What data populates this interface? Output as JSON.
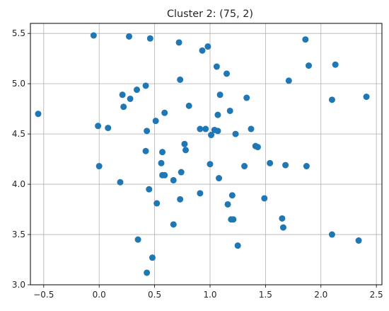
{
  "chart_data": {
    "type": "scatter",
    "title": "Cluster 2: (75, 2)",
    "xlabel": "",
    "ylabel": "",
    "xlim": [
      -0.62,
      2.55
    ],
    "ylim": [
      3.0,
      5.6
    ],
    "xticks": [
      -0.5,
      0.0,
      0.5,
      1.0,
      1.5,
      2.0,
      2.5
    ],
    "xtick_labels": [
      "−0.5",
      "0.0",
      "0.5",
      "1.0",
      "1.5",
      "2.0",
      "2.5"
    ],
    "yticks": [
      3.0,
      3.5,
      4.0,
      4.5,
      5.0,
      5.5
    ],
    "ytick_labels": [
      "3.0",
      "3.5",
      "4.0",
      "4.5",
      "5.0",
      "5.5"
    ],
    "grid": true,
    "marker_color": "#1f77b4",
    "points": [
      [
        -0.55,
        4.7
      ],
      [
        -0.05,
        5.48
      ],
      [
        -0.01,
        4.58
      ],
      [
        0.0,
        4.18
      ],
      [
        0.08,
        4.56
      ],
      [
        0.19,
        4.02
      ],
      [
        0.21,
        4.89
      ],
      [
        0.22,
        4.77
      ],
      [
        0.27,
        5.47
      ],
      [
        0.28,
        4.85
      ],
      [
        0.34,
        4.94
      ],
      [
        0.35,
        3.45
      ],
      [
        0.42,
        4.98
      ],
      [
        0.42,
        4.33
      ],
      [
        0.43,
        4.53
      ],
      [
        0.43,
        3.12
      ],
      [
        0.45,
        3.95
      ],
      [
        0.46,
        5.45
      ],
      [
        0.48,
        3.27
      ],
      [
        0.51,
        4.63
      ],
      [
        0.52,
        3.81
      ],
      [
        0.56,
        4.21
      ],
      [
        0.57,
        4.32
      ],
      [
        0.57,
        4.09
      ],
      [
        0.59,
        4.71
      ],
      [
        0.59,
        4.09
      ],
      [
        0.67,
        4.04
      ],
      [
        0.67,
        3.6
      ],
      [
        0.72,
        5.41
      ],
      [
        0.73,
        5.04
      ],
      [
        0.73,
        3.85
      ],
      [
        0.74,
        4.12
      ],
      [
        0.77,
        4.4
      ],
      [
        0.78,
        4.34
      ],
      [
        0.81,
        4.78
      ],
      [
        0.91,
        4.55
      ],
      [
        0.91,
        3.91
      ],
      [
        0.93,
        5.33
      ],
      [
        0.96,
        4.55
      ],
      [
        0.98,
        5.37
      ],
      [
        1.0,
        4.2
      ],
      [
        1.01,
        4.49
      ],
      [
        1.04,
        4.54
      ],
      [
        1.06,
        5.17
      ],
      [
        1.07,
        4.53
      ],
      [
        1.07,
        4.69
      ],
      [
        1.08,
        4.06
      ],
      [
        1.09,
        4.89
      ],
      [
        1.15,
        5.1
      ],
      [
        1.16,
        3.8
      ],
      [
        1.18,
        4.73
      ],
      [
        1.19,
        3.65
      ],
      [
        1.2,
        3.89
      ],
      [
        1.21,
        3.65
      ],
      [
        1.23,
        4.5
      ],
      [
        1.25,
        3.39
      ],
      [
        1.31,
        4.18
      ],
      [
        1.33,
        4.86
      ],
      [
        1.37,
        4.55
      ],
      [
        1.41,
        4.38
      ],
      [
        1.43,
        4.37
      ],
      [
        1.49,
        3.86
      ],
      [
        1.54,
        4.21
      ],
      [
        1.65,
        3.66
      ],
      [
        1.66,
        3.57
      ],
      [
        1.68,
        4.19
      ],
      [
        1.71,
        5.03
      ],
      [
        1.86,
        5.44
      ],
      [
        1.87,
        4.18
      ],
      [
        1.89,
        5.18
      ],
      [
        2.1,
        4.84
      ],
      [
        2.1,
        3.5
      ],
      [
        2.13,
        5.19
      ],
      [
        2.34,
        3.44
      ],
      [
        2.41,
        4.87
      ]
    ]
  }
}
